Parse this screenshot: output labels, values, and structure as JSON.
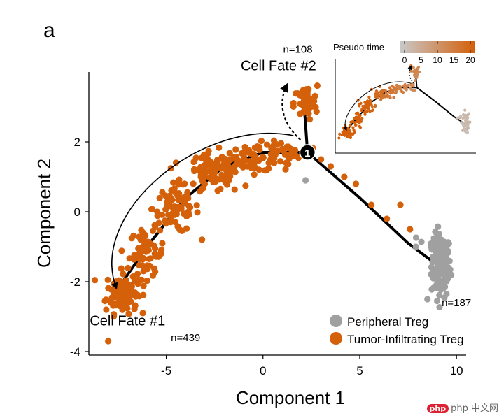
{
  "chart_data": {
    "type": "scatter",
    "panel_label": "a",
    "xlabel": "Component 1",
    "ylabel": "Component 2",
    "xlim": [
      -9,
      10.5
    ],
    "ylim": [
      -4.1,
      4.0
    ],
    "xticks": [
      -5,
      0,
      5,
      10
    ],
    "yticks": [
      -4,
      -2,
      0,
      2
    ],
    "branch_point": {
      "x": 2.3,
      "y": 1.7,
      "label": "1"
    },
    "trajectory": [
      [
        [
          -7.5,
          -2.2
        ],
        [
          -6,
          -1.0
        ],
        [
          -4,
          0.4
        ],
        [
          -2,
          1.3
        ],
        [
          0,
          1.7
        ],
        [
          2.3,
          1.7
        ]
      ],
      [
        [
          2.3,
          1.7
        ],
        [
          2.2,
          2.5
        ],
        [
          2.1,
          3.2
        ]
      ],
      [
        [
          2.3,
          1.7
        ],
        [
          5,
          0.4
        ],
        [
          7.5,
          -0.9
        ],
        [
          9.2,
          -1.6
        ]
      ]
    ],
    "annotations": [
      {
        "text": "Cell Fate #1",
        "x": -7.0,
        "y": -3.25
      },
      {
        "text": "n=439",
        "x": -4.0,
        "y": -3.7
      },
      {
        "text": "Cell Fate #2",
        "x": 0.8,
        "y": 4.05
      },
      {
        "text": "n=108",
        "x": 1.8,
        "y": 4.55
      },
      {
        "text": "n=187",
        "x": 10.0,
        "y": -2.7
      }
    ],
    "series": [
      {
        "name": "Peripheral Treg",
        "color": "#a0a0a0",
        "clusters": [
          {
            "n": 120,
            "cx": 9.2,
            "cy": -1.55,
            "sx": 0.25,
            "sy": 0.45
          },
          {
            "n": 12,
            "cx": 8.6,
            "cy": -0.9,
            "sx": 0.3,
            "sy": 0.15
          }
        ],
        "points": [
          [
            2.2,
            0.9
          ],
          [
            9.0,
            -2.55
          ],
          [
            8.5,
            -2.5
          ],
          [
            7.9,
            -1.0
          ]
        ]
      },
      {
        "name": "Tumor-Infiltrating Treg",
        "color": "#d4600a",
        "clusters": [
          {
            "n": 110,
            "cx": -7.3,
            "cy": -2.3,
            "sx": 0.4,
            "sy": 0.3
          },
          {
            "n": 60,
            "cx": -6.0,
            "cy": -1.2,
            "sx": 0.45,
            "sy": 0.35
          },
          {
            "n": 80,
            "cx": -4.5,
            "cy": 0.1,
            "sx": 0.6,
            "sy": 0.35
          },
          {
            "n": 90,
            "cx": -2.5,
            "cy": 1.1,
            "sx": 0.7,
            "sy": 0.3
          },
          {
            "n": 60,
            "cx": -0.5,
            "cy": 1.55,
            "sx": 0.7,
            "sy": 0.2
          },
          {
            "n": 35,
            "cx": 1.0,
            "cy": 1.7,
            "sx": 0.5,
            "sy": 0.15
          },
          {
            "n": 50,
            "cx": 2.2,
            "cy": 3.1,
            "sx": 0.3,
            "sy": 0.25
          }
        ],
        "points": [
          [
            -8.0,
            -3.7
          ],
          [
            -8.1,
            -2.8
          ],
          [
            3.5,
            1.3
          ],
          [
            4.8,
            0.8
          ],
          [
            5.6,
            0.2
          ],
          [
            6.4,
            -0.2
          ],
          [
            7.1,
            0.2
          ],
          [
            7.6,
            -0.5
          ],
          [
            3.0,
            1.5
          ],
          [
            4.2,
            1.0
          ],
          [
            -2.0,
            0.9
          ],
          [
            0.3,
            1.4
          ],
          [
            1.2,
            1.4
          ],
          [
            -3.3,
            1.2
          ]
        ]
      }
    ],
    "inset": {
      "title": "Pseudo-time",
      "colorbar_ticks": [
        0,
        5,
        10,
        15,
        20
      ],
      "color_range": [
        0,
        20
      ],
      "color_low": "#c8c8c8",
      "color_high": "#d4600a"
    }
  },
  "watermark": "php 中文网"
}
